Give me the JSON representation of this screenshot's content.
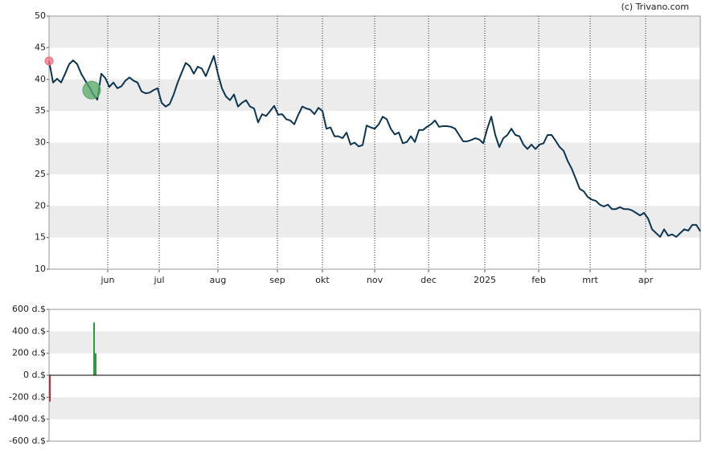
{
  "credit": "(c) Trivano.com",
  "chart_data": [
    {
      "type": "line",
      "color": "#0d3552",
      "values": [
        42.9,
        39.5,
        40.1,
        39.5,
        40.9,
        42.4,
        43.0,
        42.4,
        40.9,
        39.8,
        38.8,
        37.6,
        36.8,
        40.9,
        40.2,
        38.8,
        39.5,
        38.6,
        38.9,
        39.8,
        40.3,
        39.8,
        39.5,
        38.1,
        37.8,
        37.9,
        38.3,
        38.6,
        36.3,
        35.7,
        36.1,
        37.6,
        39.5,
        41.1,
        42.6,
        42.1,
        40.9,
        42.0,
        41.7,
        40.5,
        42.1,
        43.7,
        40.9,
        38.6,
        37.3,
        36.7,
        37.6,
        35.7,
        36.3,
        36.7,
        35.7,
        35.4,
        33.2,
        34.5,
        34.2,
        35.0,
        35.8,
        34.4,
        34.5,
        33.7,
        33.5,
        32.9,
        34.4,
        35.7,
        35.4,
        35.2,
        34.5,
        35.5,
        35.0,
        32.2,
        32.4,
        31.0,
        31.0,
        30.7,
        31.6,
        29.7,
        30.0,
        29.4,
        29.6,
        32.7,
        32.4,
        32.2,
        32.9,
        34.1,
        33.7,
        32.2,
        31.3,
        31.6,
        29.9,
        30.1,
        31.0,
        30.1,
        32.0,
        32.0,
        32.5,
        32.9,
        33.5,
        32.5,
        32.6,
        32.6,
        32.5,
        32.2,
        31.2,
        30.2,
        30.2,
        30.4,
        30.7,
        30.5,
        29.9,
        32.2,
        34.1,
        31.2,
        29.3,
        30.7,
        31.2,
        32.2,
        31.2,
        31.0,
        29.7,
        29.0,
        29.7,
        29.0,
        29.7,
        29.9,
        31.2,
        31.2,
        30.3,
        29.3,
        28.7,
        27.1,
        25.9,
        24.3,
        22.7,
        22.3,
        21.4,
        21.0,
        20.8,
        20.2,
        19.9,
        20.2,
        19.5,
        19.5,
        19.8,
        19.5,
        19.5,
        19.3,
        18.9,
        18.5,
        18.9,
        18.0,
        16.3,
        15.7,
        15.1,
        16.3,
        15.3,
        15.5,
        15.1,
        15.7,
        16.3,
        16.1,
        17.0,
        17.0,
        16.0
      ],
      "xlim": [
        0,
        162
      ],
      "xticks": [
        {
          "value": 14.6,
          "label": "jun"
        },
        {
          "value": 27.4,
          "label": "jul"
        },
        {
          "value": 42,
          "label": "aug"
        },
        {
          "value": 56.8,
          "label": "sep"
        },
        {
          "value": 68,
          "label": "okt"
        },
        {
          "value": 81,
          "label": "nov"
        },
        {
          "value": 94.4,
          "label": "dec"
        },
        {
          "value": 108.4,
          "label": "2025"
        },
        {
          "value": 121.8,
          "label": "feb"
        },
        {
          "value": 134.6,
          "label": "mrt"
        },
        {
          "value": 148.4,
          "label": "apr"
        }
      ],
      "ylim": [
        10,
        50
      ],
      "yticks": [
        10,
        15,
        20,
        25,
        30,
        35,
        40,
        45,
        50
      ],
      "bands": [
        [
          15,
          20
        ],
        [
          25,
          30
        ],
        [
          35,
          40
        ],
        [
          45,
          50
        ]
      ],
      "markers": [
        {
          "x": 0,
          "y": 42.9,
          "color": "#f07080"
        },
        {
          "x": 10.6,
          "y": 38.3,
          "color": "#5aa86a"
        }
      ]
    },
    {
      "type": "bar",
      "x": [
        0,
        11,
        11.4
      ],
      "values": [
        -240,
        480,
        200
      ],
      "colors": [
        "#c0303a",
        "#2e9a40",
        "#2e9a40"
      ],
      "xlim": [
        0,
        162
      ],
      "ylim": [
        -600,
        600
      ],
      "yticks": [
        {
          "value": -600,
          "label": "-600 d.$"
        },
        {
          "value": -400,
          "label": "-400 d.$"
        },
        {
          "value": -200,
          "label": "-200 d.$"
        },
        {
          "value": 0,
          "label": "0 d.$"
        },
        {
          "value": 200,
          "label": "200 d.$"
        },
        {
          "value": 400,
          "label": "400 d.$"
        },
        {
          "value": 600,
          "label": "600 d.$"
        }
      ],
      "bands": [
        [
          -400,
          -200
        ],
        [
          200,
          400
        ]
      ]
    }
  ]
}
